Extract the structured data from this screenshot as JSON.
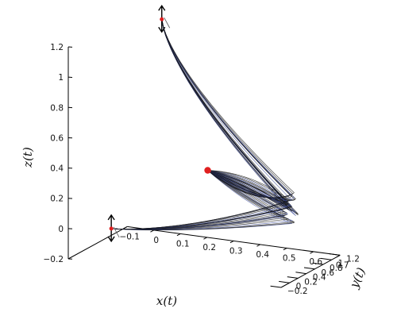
{
  "chart_data": {
    "type": "line",
    "projection": "3d",
    "title": "",
    "axes": {
      "x": {
        "label": "x(t)",
        "range": [
          -0.1,
          0.7
        ],
        "ticks": [
          "−0.1",
          "0",
          "0.1",
          "0.2",
          "0.3",
          "0.4",
          "0.5",
          "0.6",
          "0.7"
        ]
      },
      "y": {
        "label": "y(t)",
        "range": [
          -0.2,
          1.2
        ],
        "ticks": [
          "−0.2",
          "0",
          "0.2",
          "0.4",
          "0.6",
          "0.8",
          "1",
          "1.2"
        ]
      },
      "z": {
        "label": "z(t)",
        "range": [
          -0.2,
          1.2
        ],
        "ticks": [
          "−0.2",
          "0",
          "0.2",
          "0.4",
          "0.6",
          "0.8",
          "1",
          "1.2"
        ]
      }
    },
    "grid": false,
    "legend": "none",
    "series_count": 24,
    "series_colors": [
      "#111111",
      "#3a4a9a"
    ],
    "marker_color": "#e02020",
    "key_points": {
      "start_lower": {
        "x": 0.03,
        "y": 0.0,
        "z": 0.0
      },
      "start_upper": {
        "x": 0.03,
        "y": 1.2,
        "z": 1.2
      },
      "turn_point": {
        "x": 0.62,
        "y": 0.6,
        "z": 0.2
      },
      "attractor": {
        "x": 0.25,
        "y": 0.9,
        "z": 0.3
      }
    }
  }
}
